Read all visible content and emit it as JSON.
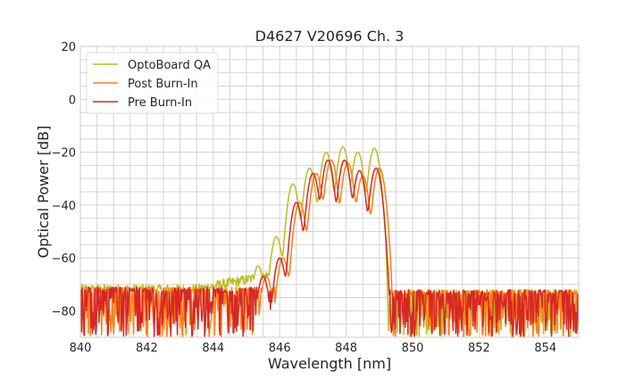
{
  "chart_data": {
    "type": "line",
    "title": "D4627 V20696 Ch. 3",
    "xlabel": "Wavelength [nm]",
    "ylabel": "Optical Power [dB]",
    "xlim": [
      840,
      855
    ],
    "ylim": [
      -90,
      20
    ],
    "xticks": [
      840,
      842,
      844,
      846,
      848,
      850,
      852,
      854
    ],
    "yticks": [
      20,
      0,
      -20,
      -40,
      -60,
      -80
    ],
    "grid": true,
    "legend_position": "top-left",
    "series": [
      {
        "name": "OptoBoard QA",
        "color": "#bcbd22",
        "peaks": [
          [
            845.35,
            -63
          ],
          [
            845.9,
            -52
          ],
          [
            846.4,
            -32
          ],
          [
            846.9,
            -26
          ],
          [
            847.4,
            -20
          ],
          [
            847.9,
            -18
          ],
          [
            848.35,
            -20
          ],
          [
            848.85,
            -18.5
          ]
        ],
        "noise_left": {
          "level": -72,
          "amplitude": 2,
          "spiky": false
        },
        "noise_right": {
          "level": -74,
          "amplitude": 16,
          "spiky": true
        },
        "cutoff_nm": 849.2
      },
      {
        "name": "Post Burn-In",
        "color": "#ff7f0e",
        "peaks": [
          [
            845.6,
            -67
          ],
          [
            846.1,
            -60
          ],
          [
            846.6,
            -39
          ],
          [
            847.1,
            -28
          ],
          [
            847.55,
            -23
          ],
          [
            848.05,
            -24
          ],
          [
            848.5,
            -29
          ],
          [
            849.0,
            -26
          ]
        ],
        "noise_left": {
          "level": -73,
          "amplitude": 17,
          "spiky": true
        },
        "noise_right": {
          "level": -74,
          "amplitude": 16,
          "spiky": true
        },
        "cutoff_nm": 849.35
      },
      {
        "name": "Pre Burn-In",
        "color": "#d62728",
        "peaks": [
          [
            845.5,
            -67
          ],
          [
            846.0,
            -60
          ],
          [
            846.5,
            -39
          ],
          [
            847.0,
            -28
          ],
          [
            847.45,
            -23
          ],
          [
            847.95,
            -23
          ],
          [
            848.4,
            -27
          ],
          [
            848.9,
            -26
          ]
        ],
        "noise_left": {
          "level": -73,
          "amplitude": 17,
          "spiky": true
        },
        "noise_right": {
          "level": -74,
          "amplitude": 16,
          "spiky": true
        },
        "cutoff_nm": 849.3
      }
    ]
  }
}
